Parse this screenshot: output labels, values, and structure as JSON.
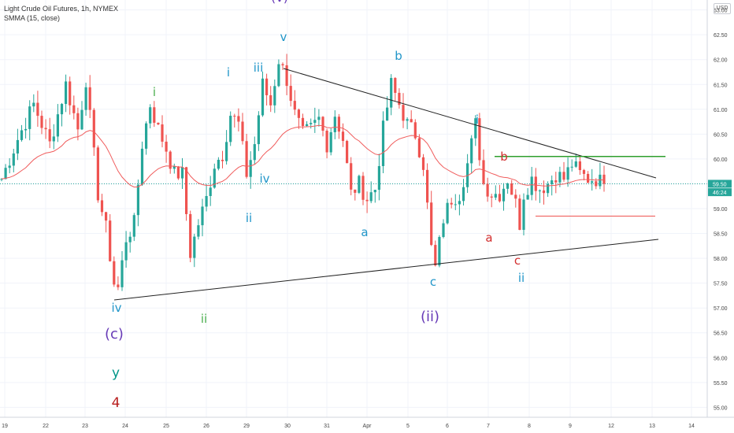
{
  "header": {
    "title": "Light Crude Oil Futures, 1h, NYMEX",
    "indicator": "SMMA (15, close)"
  },
  "currency": "USD",
  "price_tags": [
    {
      "price": 59.5,
      "text": "59.50",
      "color": "#26a69a"
    },
    {
      "price": 59.41,
      "text": "46:24",
      "color": "#26a69a"
    }
  ],
  "colors": {
    "up": "#26a69a",
    "down": "#ef5350",
    "smma": "#f05c5c",
    "trendline": "#222222",
    "green_level": "#2e9e2e",
    "red_level": "#ef5350",
    "grid": "#f0f3fa",
    "blue_label": "#2196c9",
    "green_label": "#4caf50",
    "purple_label": "#673ab7",
    "red_label": "#d32f2f",
    "teal_label": "#009688",
    "darkred_label": "#b71c1c"
  },
  "chart_data": {
    "type": "candlestick",
    "instrument": "Light Crude Oil Futures",
    "timeframe": "1h",
    "exchange": "NYMEX",
    "indicator": "SMMA (15, close)",
    "ylim": [
      54.8,
      63.2
    ],
    "y_ticks": [
      "63.00",
      "62.50",
      "62.00",
      "61.50",
      "61.00",
      "60.50",
      "60.00",
      "59.50",
      "59.00",
      "58.50",
      "58.00",
      "57.50",
      "57.00",
      "56.50",
      "56.00",
      "55.50",
      "55.00"
    ],
    "x_ticks": [
      "19",
      "22",
      "23",
      "24",
      "25",
      "26",
      "29",
      "30",
      "31",
      "Apr",
      "5",
      "6",
      "7",
      "8",
      "9",
      "12",
      "13",
      "14"
    ],
    "last_price": 59.5,
    "countdown": "46:24",
    "price_path": [
      [
        0,
        59.6
      ],
      [
        4,
        60.4
      ],
      [
        8,
        61.1
      ],
      [
        12,
        60.3
      ],
      [
        16,
        61.5
      ],
      [
        19,
        60.6
      ],
      [
        21,
        61.6
      ],
      [
        24,
        59.3
      ],
      [
        26,
        58.6
      ],
      [
        28,
        57.5
      ],
      [
        29,
        57.4
      ],
      [
        31,
        58.4
      ],
      [
        33,
        58.7
      ],
      [
        35,
        60.3
      ],
      [
        37,
        61.1
      ],
      [
        39,
        60.6
      ],
      [
        41,
        60.2
      ],
      [
        43,
        59.7
      ],
      [
        45,
        59.7
      ],
      [
        47,
        58.1
      ],
      [
        49,
        58.7
      ],
      [
        51,
        59.2
      ],
      [
        53,
        59.9
      ],
      [
        55,
        60.1
      ],
      [
        57,
        60.9
      ],
      [
        59,
        60.7
      ],
      [
        61,
        59.7
      ],
      [
        63,
        60.3
      ],
      [
        65,
        61.5
      ],
      [
        67,
        61.1
      ],
      [
        69,
        62.0
      ],
      [
        71,
        61.6
      ],
      [
        73,
        60.9
      ],
      [
        75,
        60.5
      ],
      [
        77,
        60.6
      ],
      [
        79,
        60.8
      ],
      [
        81,
        60.3
      ],
      [
        83,
        60.9
      ],
      [
        85,
        60.4
      ],
      [
        87,
        59.3
      ],
      [
        89,
        59.5
      ],
      [
        91,
        59.2
      ],
      [
        93,
        59.4
      ],
      [
        95,
        60.6
      ],
      [
        97,
        61.5
      ],
      [
        99,
        61.1
      ],
      [
        101,
        60.7
      ],
      [
        103,
        60.5
      ],
      [
        105,
        59.9
      ],
      [
        107,
        58.2
      ],
      [
        108,
        57.8
      ],
      [
        110,
        58.8
      ],
      [
        112,
        59.2
      ],
      [
        114,
        59.3
      ],
      [
        116,
        59.9
      ],
      [
        118,
        60.7
      ],
      [
        120,
        59.5
      ],
      [
        122,
        59.3
      ],
      [
        124,
        59.3
      ],
      [
        126,
        59.6
      ],
      [
        128,
        59.1
      ],
      [
        129,
        58.7
      ],
      [
        130,
        59.3
      ],
      [
        132,
        59.6
      ],
      [
        134,
        59.4
      ],
      [
        136,
        59.5
      ],
      [
        138,
        59.7
      ],
      [
        140,
        59.6
      ],
      [
        142,
        59.9
      ],
      [
        144,
        59.7
      ],
      [
        146,
        59.6
      ],
      [
        148,
        59.6
      ],
      [
        150,
        59.5
      ]
    ],
    "trendlines": [
      {
        "from": [
          "30",
          62.25
        ],
        "to": [
          "13",
          59.85
        ],
        "note": "upper triangle line"
      },
      {
        "from": [
          "23",
          57.15
        ],
        "to": [
          "13",
          58.5
        ],
        "note": "lower triangle line"
      }
    ],
    "levels": [
      {
        "price": 60.05,
        "from": "7",
        "to": "13",
        "color": "green"
      },
      {
        "price": 58.85,
        "from": "8",
        "to": "12",
        "color": "red"
      }
    ],
    "annotations": [
      {
        "text": "(v)",
        "color": "purple"
      },
      {
        "text": "v",
        "color": "blue"
      },
      {
        "text": "iii",
        "color": "blue"
      },
      {
        "text": "i",
        "color": "blue"
      },
      {
        "text": "i",
        "color": "green"
      },
      {
        "text": "b",
        "color": "blue"
      },
      {
        "text": "iv",
        "color": "blue"
      },
      {
        "text": "ii",
        "color": "blue"
      },
      {
        "text": "i",
        "color": "blue"
      },
      {
        "text": "b",
        "color": "red"
      },
      {
        "text": "a",
        "color": "blue"
      },
      {
        "text": "a",
        "color": "red"
      },
      {
        "text": "c",
        "color": "red"
      },
      {
        "text": "ii",
        "color": "blue"
      },
      {
        "text": "c",
        "color": "blue"
      },
      {
        "text": "iv",
        "color": "blue"
      },
      {
        "text": "ii",
        "color": "green"
      },
      {
        "text": "(ii)",
        "color": "purple"
      },
      {
        "text": "(c)",
        "color": "purple"
      },
      {
        "text": "y",
        "color": "teal"
      },
      {
        "text": "4",
        "color": "darkred"
      }
    ]
  }
}
